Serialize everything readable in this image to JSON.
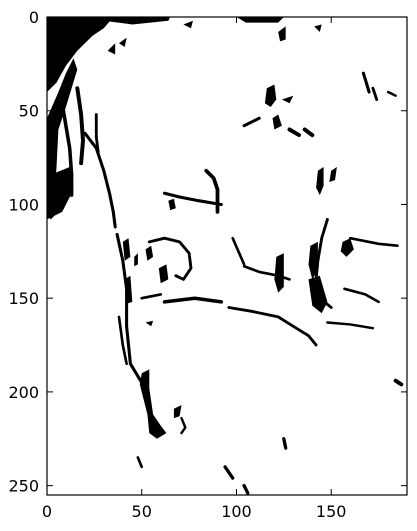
{
  "chart_data": {
    "type": "heatmap",
    "title": "",
    "xlabel": "",
    "ylabel": "",
    "colormap": [
      "#ffffff",
      "#000000"
    ],
    "xlim": [
      0,
      190
    ],
    "ylim": [
      255,
      0
    ],
    "x_ticks": [
      0,
      50,
      100,
      150
    ],
    "y_ticks": [
      0,
      50,
      100,
      150,
      200,
      250
    ],
    "grid": false,
    "marks": [
      {
        "type": "fill",
        "pts": [
          [
            0,
            0
          ],
          [
            2,
            0
          ],
          [
            2,
            8
          ],
          [
            1,
            25
          ],
          [
            0,
            30
          ]
        ]
      },
      {
        "type": "fill",
        "pts": [
          [
            0,
            54
          ],
          [
            6,
            40
          ],
          [
            10,
            30
          ],
          [
            14,
            22
          ],
          [
            16,
            28
          ],
          [
            10,
            48
          ],
          [
            6,
            60
          ],
          [
            5,
            80
          ],
          [
            4,
            95
          ],
          [
            6,
            104
          ],
          [
            2,
            108
          ],
          [
            0,
            106
          ]
        ]
      },
      {
        "type": "fill",
        "pts": [
          [
            0,
            85
          ],
          [
            12,
            80
          ],
          [
            14,
            92
          ],
          [
            8,
            104
          ],
          [
            0,
            108
          ]
        ]
      },
      {
        "type": "fill",
        "pts": [
          [
            0,
            0
          ],
          [
            35,
            0
          ],
          [
            30,
            6
          ],
          [
            24,
            10
          ],
          [
            16,
            18
          ],
          [
            10,
            26
          ],
          [
            5,
            35
          ],
          [
            0,
            40
          ]
        ]
      },
      {
        "type": "fill",
        "pts": [
          [
            30,
            0
          ],
          [
            65,
            0
          ],
          [
            64,
            2
          ],
          [
            45,
            4
          ],
          [
            30,
            2
          ]
        ]
      },
      {
        "type": "fill",
        "pts": [
          [
            100,
            0
          ],
          [
            125,
            0
          ],
          [
            122,
            3
          ],
          [
            105,
            3
          ]
        ]
      },
      {
        "type": "fill",
        "pts": [
          [
            72,
            4
          ],
          [
            77,
            2
          ],
          [
            76,
            6
          ]
        ]
      },
      {
        "type": "fill",
        "pts": [
          [
            32,
            18
          ],
          [
            36,
            14
          ],
          [
            36,
            20
          ]
        ]
      },
      {
        "type": "fill",
        "pts": [
          [
            38,
            14
          ],
          [
            42,
            11
          ],
          [
            41,
            16
          ]
        ]
      },
      {
        "type": "fill",
        "pts": [
          [
            122,
            8
          ],
          [
            126,
            5
          ],
          [
            126,
            12
          ],
          [
            123,
            13
          ]
        ]
      },
      {
        "type": "fill",
        "pts": [
          [
            141,
            5
          ],
          [
            145,
            4
          ],
          [
            144,
            8
          ]
        ]
      },
      {
        "type": "line",
        "w": 1.6,
        "pts": [
          [
            8,
            46
          ],
          [
            10,
            58
          ],
          [
            12,
            70
          ],
          [
            13,
            84
          ],
          [
            13,
            95
          ]
        ]
      },
      {
        "type": "line",
        "w": 1.8,
        "pts": [
          [
            16,
            38
          ],
          [
            18,
            52
          ],
          [
            19,
            66
          ],
          [
            18,
            78
          ]
        ]
      },
      {
        "type": "line",
        "w": 1.3,
        "pts": [
          [
            26,
            52
          ],
          [
            26,
            64
          ],
          [
            27,
            72
          ]
        ]
      },
      {
        "type": "line",
        "w": 1.4,
        "pts": [
          [
            20,
            62
          ],
          [
            26,
            70
          ],
          [
            30,
            82
          ],
          [
            33,
            94
          ],
          [
            35,
            104
          ],
          [
            36,
            112
          ]
        ]
      },
      {
        "type": "line",
        "w": 1.4,
        "pts": [
          [
            37,
            116
          ],
          [
            40,
            130
          ],
          [
            42,
            145
          ],
          [
            42,
            165
          ],
          [
            44,
            185
          ],
          [
            50,
            195
          ]
        ]
      },
      {
        "type": "fill",
        "pts": [
          [
            40,
            120
          ],
          [
            43,
            118
          ],
          [
            44,
            128
          ],
          [
            41,
            130
          ]
        ]
      },
      {
        "type": "fill",
        "pts": [
          [
            46,
            128
          ],
          [
            48,
            126
          ],
          [
            48,
            132
          ],
          [
            46,
            133
          ]
        ]
      },
      {
        "type": "fill",
        "pts": [
          [
            41,
            140
          ],
          [
            44,
            138
          ],
          [
            45,
            152
          ],
          [
            42,
            153
          ]
        ]
      },
      {
        "type": "line",
        "w": 1.2,
        "pts": [
          [
            38,
            160
          ],
          [
            40,
            175
          ],
          [
            42,
            185
          ]
        ]
      },
      {
        "type": "fill",
        "pts": [
          [
            50,
            190
          ],
          [
            54,
            188
          ],
          [
            54,
            198
          ],
          [
            56,
            212
          ],
          [
            60,
            218
          ],
          [
            63,
            222
          ],
          [
            58,
            225
          ],
          [
            54,
            222
          ],
          [
            53,
            212
          ],
          [
            51,
            204
          ],
          [
            49,
            196
          ]
        ]
      },
      {
        "type": "fill",
        "pts": [
          [
            67,
            209
          ],
          [
            71,
            207
          ],
          [
            70,
            213
          ],
          [
            67,
            214
          ]
        ]
      },
      {
        "type": "line",
        "w": 1.1,
        "pts": [
          [
            71,
            214
          ],
          [
            73,
            219
          ],
          [
            71,
            222
          ]
        ]
      },
      {
        "type": "fill",
        "pts": [
          [
            52,
            163
          ],
          [
            56,
            162
          ],
          [
            55,
            165
          ]
        ]
      },
      {
        "type": "line",
        "w": 1.2,
        "pts": [
          [
            50,
            150
          ],
          [
            60,
            148
          ]
        ]
      },
      {
        "type": "line",
        "w": 1.6,
        "pts": [
          [
            62,
            152
          ],
          [
            78,
            150
          ],
          [
            92,
            152
          ]
        ]
      },
      {
        "type": "line",
        "w": 1.3,
        "pts": [
          [
            96,
            155
          ],
          [
            108,
            157
          ],
          [
            122,
            160
          ],
          [
            130,
            165
          ],
          [
            138,
            170
          ],
          [
            142,
            175
          ]
        ]
      },
      {
        "type": "line",
        "w": 1.2,
        "pts": [
          [
            104,
            133
          ],
          [
            112,
            136
          ],
          [
            122,
            138
          ],
          [
            128,
            140
          ]
        ]
      },
      {
        "type": "line",
        "w": 1.2,
        "pts": [
          [
            98,
            118
          ],
          [
            101,
            125
          ],
          [
            104,
            132
          ]
        ]
      },
      {
        "type": "line",
        "w": 1.3,
        "pts": [
          [
            54,
            120
          ],
          [
            62,
            118
          ],
          [
            70,
            120
          ],
          [
            75,
            126
          ],
          [
            76,
            134
          ],
          [
            72,
            140
          ],
          [
            68,
            138
          ]
        ]
      },
      {
        "type": "fill",
        "pts": [
          [
            59,
            134
          ],
          [
            63,
            132
          ],
          [
            64,
            140
          ],
          [
            60,
            142
          ]
        ]
      },
      {
        "type": "fill",
        "pts": [
          [
            52,
            124
          ],
          [
            55,
            122
          ],
          [
            56,
            128
          ],
          [
            53,
            130
          ]
        ]
      },
      {
        "type": "line",
        "w": 1.4,
        "pts": [
          [
            62,
            94
          ],
          [
            70,
            96
          ],
          [
            80,
            98
          ],
          [
            92,
            100
          ]
        ]
      },
      {
        "type": "line",
        "w": 1.7,
        "pts": [
          [
            84,
            82
          ],
          [
            88,
            86
          ],
          [
            90,
            92
          ],
          [
            90,
            104
          ]
        ]
      },
      {
        "type": "fill",
        "pts": [
          [
            64,
            98
          ],
          [
            67,
            97
          ],
          [
            68,
            102
          ],
          [
            65,
            103
          ]
        ]
      },
      {
        "type": "fill",
        "pts": [
          [
            116,
            38
          ],
          [
            120,
            36
          ],
          [
            121,
            44
          ],
          [
            118,
            48
          ],
          [
            115,
            46
          ]
        ]
      },
      {
        "type": "fill",
        "pts": [
          [
            119,
            54
          ],
          [
            122,
            52
          ],
          [
            124,
            58
          ],
          [
            120,
            60
          ]
        ]
      },
      {
        "type": "fill",
        "pts": [
          [
            124,
            44
          ],
          [
            130,
            42
          ],
          [
            128,
            46
          ]
        ]
      },
      {
        "type": "line",
        "w": 1.4,
        "pts": [
          [
            104,
            58
          ],
          [
            112,
            54
          ]
        ]
      },
      {
        "type": "line",
        "w": 1.8,
        "pts": [
          [
            128,
            60
          ],
          [
            133,
            63
          ]
        ]
      },
      {
        "type": "line",
        "w": 1.8,
        "pts": [
          [
            136,
            60
          ],
          [
            140,
            63
          ]
        ]
      },
      {
        "type": "fill",
        "pts": [
          [
            143,
            82
          ],
          [
            146,
            80
          ],
          [
            146,
            90
          ],
          [
            144,
            95
          ],
          [
            142,
            91
          ]
        ]
      },
      {
        "type": "fill",
        "pts": [
          [
            150,
            82
          ],
          [
            153,
            80
          ],
          [
            152,
            87
          ],
          [
            149,
            88
          ]
        ]
      },
      {
        "type": "line",
        "w": 1.3,
        "pts": [
          [
            148,
            108
          ],
          [
            145,
            118
          ],
          [
            143,
            130
          ],
          [
            142,
            140
          ],
          [
            144,
            150
          ],
          [
            150,
            155
          ]
        ]
      },
      {
        "type": "fill",
        "pts": [
          [
            139,
            122
          ],
          [
            143,
            120
          ],
          [
            143,
            135
          ],
          [
            140,
            140
          ],
          [
            138,
            132
          ]
        ]
      },
      {
        "type": "fill",
        "pts": [
          [
            138,
            140
          ],
          [
            144,
            138
          ],
          [
            148,
            152
          ],
          [
            145,
            158
          ],
          [
            140,
            154
          ]
        ]
      },
      {
        "type": "fill",
        "pts": [
          [
            156,
            120
          ],
          [
            160,
            118
          ],
          [
            162,
            124
          ],
          [
            158,
            128
          ],
          [
            155,
            125
          ]
        ]
      },
      {
        "type": "line",
        "w": 1.2,
        "pts": [
          [
            160,
            118
          ],
          [
            175,
            121
          ],
          [
            185,
            122
          ]
        ]
      },
      {
        "type": "line",
        "w": 1.2,
        "pts": [
          [
            157,
            145
          ],
          [
            168,
            148
          ],
          [
            175,
            152
          ]
        ]
      },
      {
        "type": "line",
        "w": 1.1,
        "pts": [
          [
            148,
            163
          ],
          [
            160,
            164
          ],
          [
            172,
            166
          ]
        ]
      },
      {
        "type": "line",
        "w": 1.8,
        "pts": [
          [
            184,
            194
          ],
          [
            187,
            196
          ]
        ]
      },
      {
        "type": "fill",
        "pts": [
          [
            121,
            128
          ],
          [
            125,
            126
          ],
          [
            125,
            144
          ],
          [
            122,
            147
          ],
          [
            120,
            140
          ]
        ]
      },
      {
        "type": "line",
        "w": 1.4,
        "pts": [
          [
            167,
            30
          ],
          [
            170,
            40
          ]
        ]
      },
      {
        "type": "line",
        "w": 1.3,
        "pts": [
          [
            172,
            38
          ],
          [
            174,
            44
          ]
        ]
      },
      {
        "type": "line",
        "w": 1.1,
        "pts": [
          [
            180,
            40
          ],
          [
            184,
            42
          ]
        ]
      },
      {
        "type": "line",
        "w": 1.5,
        "pts": [
          [
            125,
            225
          ],
          [
            126,
            230
          ]
        ]
      },
      {
        "type": "line",
        "w": 1.5,
        "pts": [
          [
            94,
            240
          ],
          [
            98,
            246
          ]
        ]
      },
      {
        "type": "line",
        "w": 1.5,
        "pts": [
          [
            104,
            250
          ],
          [
            106,
            254
          ]
        ]
      },
      {
        "type": "line",
        "w": 1.2,
        "pts": [
          [
            48,
            235
          ],
          [
            50,
            240
          ]
        ]
      }
    ]
  }
}
